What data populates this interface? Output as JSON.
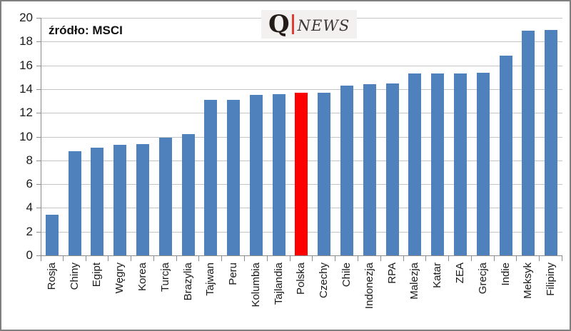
{
  "header": {
    "source_label": "źródło: MSCI",
    "logo": {
      "q": "Q",
      "news": "NEWS"
    }
  },
  "colors": {
    "bar": "#4F81BD",
    "highlight": "#FF0000",
    "gridline": "#C4C4C4",
    "axis": "#8C8C8C",
    "frame_border": "#7F7F7F",
    "logo_accent": "#E03C31"
  },
  "chart_data": {
    "type": "bar",
    "title": "",
    "xlabel": "",
    "ylabel": "",
    "source_annotation": "źródło: MSCI",
    "categories": [
      "Rosja",
      "Chiny",
      "Egipt",
      "Węgry",
      "Korea",
      "Turcja",
      "Brazylia",
      "Tajwan",
      "Peru",
      "Kolumbia",
      "Tajlandia",
      "Polska",
      "Czechy",
      "Chile",
      "Indonezja",
      "RPA",
      "Malezja",
      "Katar",
      "ZEA",
      "Grecja",
      "Indie",
      "Meksyk",
      "Filipiny"
    ],
    "values": [
      3.4,
      8.8,
      9.1,
      9.3,
      9.4,
      9.9,
      10.2,
      13.1,
      13.1,
      13.5,
      13.6,
      13.7,
      13.7,
      14.3,
      14.4,
      14.5,
      15.3,
      15.3,
      15.3,
      15.4,
      16.8,
      18.9,
      19.0
    ],
    "highlight_category": "Polska",
    "ylim": [
      0,
      20
    ],
    "yticks": [
      0,
      2,
      4,
      6,
      8,
      10,
      12,
      14,
      16,
      18,
      20
    ],
    "grid": true,
    "legend": false,
    "x_labels_rotation_deg": 90
  }
}
